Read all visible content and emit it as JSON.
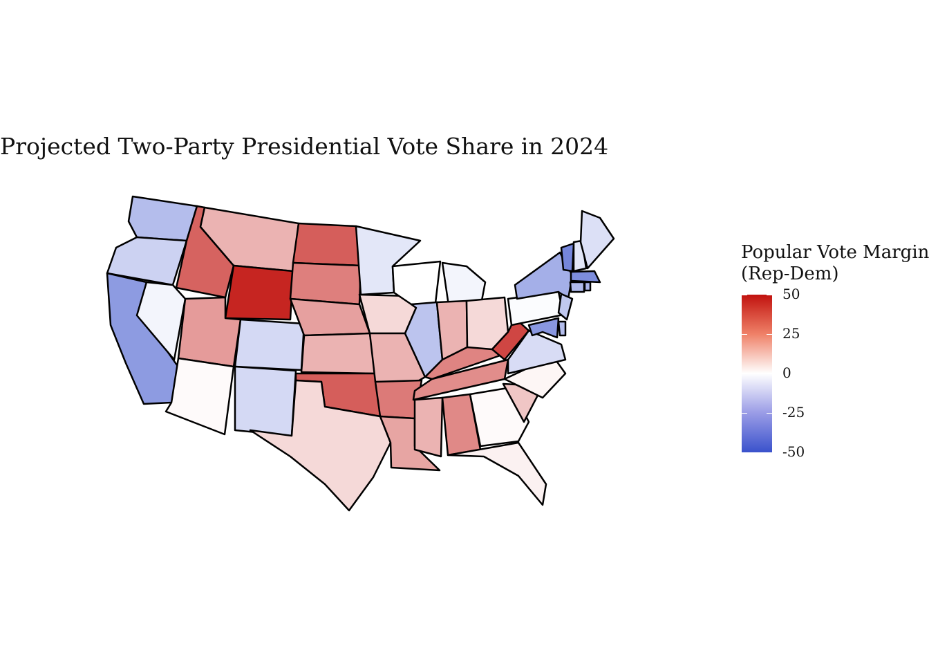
{
  "title": "Projected Two-Party Presidential Vote Share in 2024",
  "legend": {
    "title_line1": "Popular Vote Margin",
    "title_line2": "(Rep-Dem)",
    "min": -50,
    "max": 50,
    "ticks": [
      "50",
      "25",
      "0",
      "-25",
      "-50"
    ],
    "colors": {
      "high": "#c1120e",
      "mid": "#ffffff",
      "low": "#3a52cc"
    }
  },
  "states": [
    {
      "abbr": "WA",
      "margin": -19
    },
    {
      "abbr": "OR",
      "margin": -13
    },
    {
      "abbr": "CA",
      "margin": -29
    },
    {
      "abbr": "NV",
      "margin": -3
    },
    {
      "abbr": "ID",
      "margin": 33
    },
    {
      "abbr": "MT",
      "margin": 16
    },
    {
      "abbr": "WY",
      "margin": 46
    },
    {
      "abbr": "UT",
      "margin": 21
    },
    {
      "abbr": "AZ",
      "margin": 1
    },
    {
      "abbr": "CO",
      "margin": -11
    },
    {
      "abbr": "NM",
      "margin": -11
    },
    {
      "abbr": "ND",
      "margin": 34
    },
    {
      "abbr": "SD",
      "margin": 27
    },
    {
      "abbr": "NE",
      "margin": 20
    },
    {
      "abbr": "KS",
      "margin": 16
    },
    {
      "abbr": "OK",
      "margin": 34
    },
    {
      "abbr": "TX",
      "margin": 8
    },
    {
      "abbr": "MN",
      "margin": -7
    },
    {
      "abbr": "IA",
      "margin": 8
    },
    {
      "abbr": "MO",
      "margin": 16
    },
    {
      "abbr": "AR",
      "margin": 28
    },
    {
      "abbr": "LA",
      "margin": 19
    },
    {
      "abbr": "WI",
      "margin": 0
    },
    {
      "abbr": "IL",
      "margin": -17
    },
    {
      "abbr": "MI",
      "margin": -3
    },
    {
      "abbr": "IN",
      "margin": 16
    },
    {
      "abbr": "KY",
      "margin": 26
    },
    {
      "abbr": "TN",
      "margin": 24
    },
    {
      "abbr": "MS",
      "margin": 16
    },
    {
      "abbr": "AL",
      "margin": 25
    },
    {
      "abbr": "OH",
      "margin": 8
    },
    {
      "abbr": "WV",
      "margin": 39
    },
    {
      "abbr": "GA",
      "margin": 1
    },
    {
      "abbr": "FL",
      "margin": 3
    },
    {
      "abbr": "SC",
      "margin": 12
    },
    {
      "abbr": "NC",
      "margin": 2
    },
    {
      "abbr": "VA",
      "margin": -10
    },
    {
      "abbr": "PA",
      "margin": -1
    },
    {
      "abbr": "NY",
      "margin": -23
    },
    {
      "abbr": "VT",
      "margin": -35
    },
    {
      "abbr": "NH",
      "margin": -7
    },
    {
      "abbr": "ME",
      "margin": -9
    },
    {
      "abbr": "MA",
      "margin": -33
    },
    {
      "abbr": "CT",
      "margin": -20
    },
    {
      "abbr": "RI",
      "margin": -21
    },
    {
      "abbr": "NJ",
      "margin": -16
    },
    {
      "abbr": "DE",
      "margin": -19
    },
    {
      "abbr": "MD",
      "margin": -30
    }
  ]
}
